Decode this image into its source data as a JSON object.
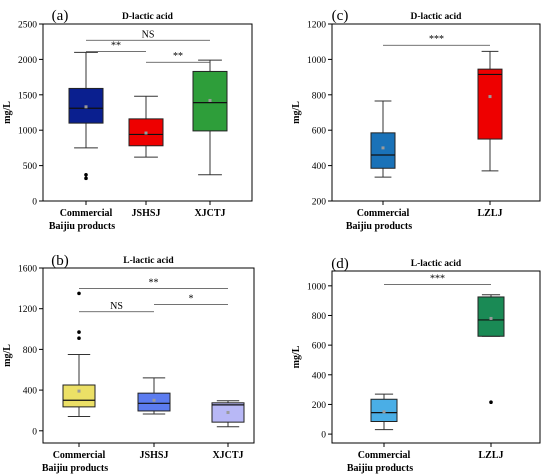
{
  "chart_data": [
    {
      "type": "box",
      "panel_label": "(a)",
      "title": "D-lactic acid",
      "ylabel": "mg/L",
      "xlabel": "",
      "ylim": [
        0,
        2500
      ],
      "yticks": [
        0,
        500,
        1000,
        1500,
        2000,
        2500
      ],
      "categories": [
        "Commercial",
        "JSHSJ",
        "XJCTJ"
      ],
      "category_sublabel": "Baijiu products",
      "colors": [
        "#0a1f8f",
        "#ee0000",
        "#2e9e3a"
      ],
      "boxes": [
        {
          "whisker_low": 750,
          "q1": 1100,
          "median": 1310,
          "mean": 1330,
          "q3": 1590,
          "whisker_high": 2100,
          "outliers": [
            370,
            320
          ]
        },
        {
          "whisker_low": 620,
          "q1": 780,
          "median": 940,
          "mean": 960,
          "q3": 1160,
          "whisker_high": 1480,
          "outliers": []
        },
        {
          "whisker_low": 370,
          "q1": 990,
          "median": 1390,
          "mean": 1420,
          "q3": 1830,
          "whisker_high": 1990,
          "outliers": []
        }
      ],
      "significance": [
        {
          "from": 0,
          "to": 1,
          "label": "**",
          "y": 2110
        },
        {
          "from": 0,
          "to": 2,
          "label": "NS",
          "y": 2270
        },
        {
          "from": 1,
          "to": 2,
          "label": "**",
          "y": 1960
        }
      ]
    },
    {
      "type": "box",
      "panel_label": "(c)",
      "title": "D-lactic acid",
      "ylabel": "mg/L",
      "xlabel": "",
      "ylim": [
        200,
        1200
      ],
      "yticks": [
        200,
        400,
        600,
        800,
        1000,
        1200
      ],
      "categories": [
        "Commercial",
        "LZLJ"
      ],
      "category_sublabel": "Baijiu products",
      "colors": [
        "#1a72b8",
        "#ee0000"
      ],
      "boxes": [
        {
          "whisker_low": 335,
          "q1": 385,
          "median": 460,
          "mean": 500,
          "q3": 585,
          "whisker_high": 765,
          "outliers": []
        },
        {
          "whisker_low": 370,
          "q1": 550,
          "median": 915,
          "mean": 790,
          "q3": 945,
          "whisker_high": 1045,
          "outliers": []
        }
      ],
      "significance": [
        {
          "from": 0,
          "to": 1,
          "label": "***",
          "y": 1080
        }
      ]
    },
    {
      "type": "box",
      "panel_label": "(b)",
      "title": "L-lactic acid",
      "ylabel": "mg/L",
      "xlabel": "",
      "ylim": [
        -120,
        1600
      ],
      "yticks": [
        0,
        400,
        800,
        1200,
        1600
      ],
      "categories": [
        "Commercial",
        "JSHSJ",
        "XJCTJ"
      ],
      "category_sublabel": "Baijiu products",
      "colors": [
        "#ece066",
        "#5c7cf0",
        "#b8b8f6"
      ],
      "boxes": [
        {
          "whisker_low": 140,
          "q1": 235,
          "median": 300,
          "mean": 390,
          "q3": 450,
          "whisker_high": 750,
          "outliers": [
            1350,
            970,
            910
          ]
        },
        {
          "whisker_low": 165,
          "q1": 195,
          "median": 270,
          "mean": 300,
          "q3": 370,
          "whisker_high": 520,
          "outliers": []
        },
        {
          "whisker_low": 40,
          "q1": 85,
          "median": 255,
          "mean": 180,
          "q3": 275,
          "whisker_high": 295,
          "outliers": []
        }
      ],
      "significance": [
        {
          "from": 0,
          "to": 2,
          "label": "**",
          "y": 1400
        },
        {
          "from": 0,
          "to": 1,
          "label": "NS",
          "y": 1170
        },
        {
          "from": 1,
          "to": 2,
          "label": "*",
          "y": 1240
        }
      ]
    },
    {
      "type": "box",
      "panel_label": "(d)",
      "title": "L-lactic acid",
      "ylabel": "mg/L",
      "xlabel": "",
      "ylim": [
        -60,
        1100
      ],
      "yticks": [
        0,
        200,
        400,
        600,
        800,
        1000
      ],
      "categories": [
        "Commercial",
        "LZLJ"
      ],
      "category_sublabel": "Baijiu products",
      "colors": [
        "#4aaee6",
        "#1a8a55"
      ],
      "boxes": [
        {
          "whisker_low": 30,
          "q1": 85,
          "median": 145,
          "mean": 150,
          "q3": 235,
          "whisker_high": 270,
          "outliers": []
        },
        {
          "whisker_low": 660,
          "q1": 660,
          "median": 770,
          "mean": 780,
          "q3": 925,
          "whisker_high": 940,
          "outliers": [
            215
          ]
        }
      ],
      "significance": [
        {
          "from": 0,
          "to": 1,
          "label": "***",
          "y": 1010
        }
      ]
    }
  ]
}
